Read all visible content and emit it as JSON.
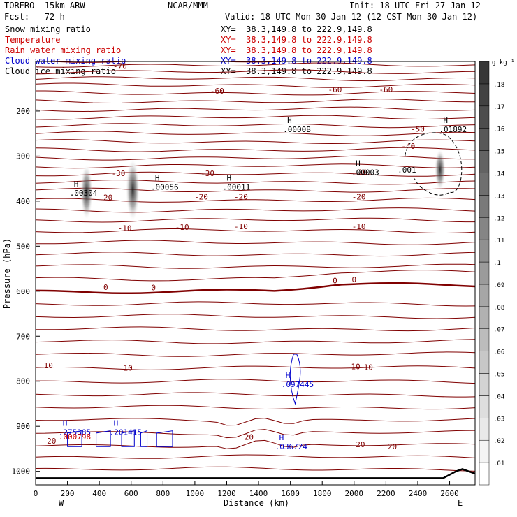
{
  "header": {
    "model": "TORERO  15km ARW",
    "org": "NCAR/MMM",
    "init": "Init: 18 UTC Fri 27 Jan 12",
    "fcst": "Fcst:   72 h",
    "valid": "Valid: 18 UTC Mon 30 Jan 12 (12 CST Mon 30 Jan 12)"
  },
  "fields": [
    {
      "name": "Snow mixing ratio",
      "xy": "XY=  38.3,149.8 to 222.9,149.8",
      "color": "#000000"
    },
    {
      "name": "Temperature",
      "xy": "XY=  38.3,149.8 to 222.9,149.8",
      "color": "#cc0000"
    },
    {
      "name": "Rain water mixing ratio",
      "xy": "XY=  38.3,149.8 to 222.9,149.8",
      "color": "#cc0000"
    },
    {
      "name": "Cloud water mixing ratio",
      "xy": "XY=  38.3,149.8 to 222.9,149.8",
      "color": "#0000cc"
    },
    {
      "name": "Cloud ice mixing ratio",
      "xy": "XY=  38.3,149.8 to 222.9,149.8",
      "color": "#000000"
    }
  ],
  "chart_data": {
    "type": "contour",
    "xlabel": "Distance (km)",
    "ylabel": "Pressure (hPa)",
    "xlim": [
      0,
      2760
    ],
    "ylim": [
      1030,
      90
    ],
    "x_ticks": [
      0,
      200,
      400,
      600,
      800,
      1000,
      1200,
      1400,
      1600,
      1800,
      2000,
      2200,
      2400,
      2600
    ],
    "y_ticks": [
      200,
      300,
      400,
      500,
      600,
      700,
      800,
      900,
      1000
    ],
    "left_end": "W",
    "right_end": "E",
    "colorbar": {
      "unit": "g kg⁻¹",
      "levels": [
        ".01",
        ".02",
        ".03",
        ".04",
        ".05",
        ".06",
        ".07",
        ".08",
        ".09",
        ".1",
        ".11",
        ".12",
        ".13",
        ".14",
        ".15",
        ".16",
        ".17",
        ".18"
      ]
    },
    "temperature_labels": [
      {
        "text": "-70",
        "x": 530,
        "p": 100
      },
      {
        "text": "-60",
        "x": 1140,
        "p": 155
      },
      {
        "text": "-60",
        "x": 1880,
        "p": 152
      },
      {
        "text": "-60",
        "x": 2200,
        "p": 152
      },
      {
        "text": "-50",
        "x": 2400,
        "p": 240
      },
      {
        "text": "-40",
        "x": 2340,
        "p": 278
      },
      {
        "text": "-30",
        "x": 520,
        "p": 338
      },
      {
        "text": "-30",
        "x": 1080,
        "p": 338
      },
      {
        "text": "-30",
        "x": 2040,
        "p": 336
      },
      {
        "text": "-20",
        "x": 440,
        "p": 392
      },
      {
        "text": "-20",
        "x": 1040,
        "p": 390
      },
      {
        "text": "-20",
        "x": 1290,
        "p": 390
      },
      {
        "text": "-20",
        "x": 2030,
        "p": 390
      },
      {
        "text": "-10",
        "x": 560,
        "p": 460
      },
      {
        "text": "-10",
        "x": 920,
        "p": 458
      },
      {
        "text": "-10",
        "x": 1290,
        "p": 456
      },
      {
        "text": "-10",
        "x": 2030,
        "p": 456
      },
      {
        "text": "0",
        "x": 440,
        "p": 591
      },
      {
        "text": "0",
        "x": 740,
        "p": 592
      },
      {
        "text": "0",
        "x": 1880,
        "p": 576
      },
      {
        "text": "0",
        "x": 2000,
        "p": 574
      },
      {
        "text": "10",
        "x": 80,
        "p": 765
      },
      {
        "text": "10",
        "x": 580,
        "p": 770
      },
      {
        "text": "10",
        "x": 2010,
        "p": 767
      },
      {
        "text": "10",
        "x": 2090,
        "p": 769
      },
      {
        "text": "20",
        "x": 100,
        "p": 932
      },
      {
        "text": "20",
        "x": 1340,
        "p": 924
      },
      {
        "text": "20",
        "x": 2040,
        "p": 940
      },
      {
        "text": "20",
        "x": 2240,
        "p": 945
      }
    ],
    "maxima": [
      {
        "mark": "H",
        "value": ".00304",
        "x": 240,
        "p": 377,
        "color": "#000000"
      },
      {
        "mark": "H",
        "value": ".00056",
        "x": 750,
        "p": 364,
        "color": "#000000"
      },
      {
        "mark": "H",
        "value": ".00011",
        "x": 1200,
        "p": 364,
        "color": "#000000"
      },
      {
        "mark": "H",
        "value": ".0000B",
        "x": 1580,
        "p": 236,
        "color": "#000000"
      },
      {
        "mark": "H",
        "value": ".00003",
        "x": 2010,
        "p": 331,
        "color": "#000000"
      },
      {
        "mark": "H",
        "value": ".01892",
        "x": 2560,
        "p": 236,
        "color": "#000000"
      },
      {
        "mark": "",
        "value": ".001",
        "x": 2300,
        "p": 326,
        "color": "#000000"
      },
      {
        "mark": "H",
        "value": ".097445",
        "x": 1570,
        "p": 802,
        "color": "#0000cc"
      },
      {
        "mark": "H",
        "value": ".201415",
        "x": 490,
        "p": 908,
        "color": "#0000cc"
      },
      {
        "mark": "H",
        "value": ".275385",
        "x": 170,
        "p": 908,
        "color": "#0000cc"
      },
      {
        "mark": "H",
        "value": ".036724",
        "x": 1530,
        "p": 940,
        "color": "#0000cc"
      },
      {
        "mark": "",
        "value": ".000798",
        "x": 170,
        "p": 918,
        "color": "#cc0000"
      }
    ]
  },
  "colors": {
    "temperature": "#800000",
    "cloud_water": "#0000cc",
    "snow": "#000000",
    "axis": "#000000"
  }
}
